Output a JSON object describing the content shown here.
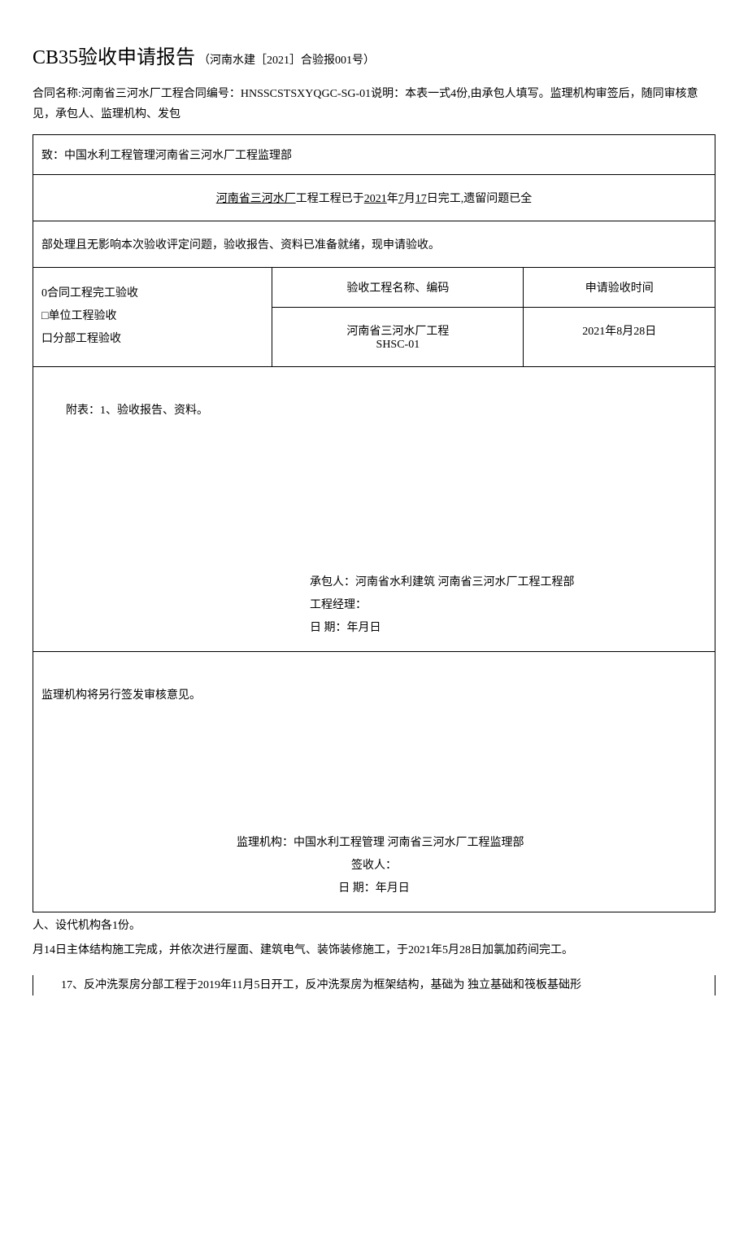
{
  "header": {
    "title": "CB35验收申请报告",
    "title_sub": "（河南水建［2021］合验报001号）",
    "desc": "合同名称:河南省三河水厂工程合同编号：HNSSCSTSXYQGC-SG-01说明：本表一式4份,由承包人填写。监理机构审签后，随同审核意见，承包人、监理机构、发包"
  },
  "form": {
    "to": "致：中国水利工程管理河南省三河水厂工程监理部",
    "completion_prefix": "河南省三河水厂",
    "completion_mid1": "工程工程已于",
    "completion_year": "2021",
    "completion_y": "年",
    "completion_month": "7",
    "completion_m": "月",
    "completion_day": "17",
    "completion_suffix": "日完工,遗留问题已全",
    "note": "部处理且无影响本次验收评定问题，验收报告、资料已准备就绪，现申请验收。",
    "checkbox1": "0合同工程完工验收",
    "checkbox2": "□单位工程验收",
    "checkbox3": "口分部工程验收",
    "col_name_header": "验收工程名称、编码",
    "col_time_header": "申请验收时间",
    "project_name_line1": "河南省三河水厂工程",
    "project_name_line2": "SHSC-01",
    "apply_date": "2021年8月28日",
    "attachment": "附表：1、验收报告、资料。",
    "contractor_label": "承包人：河南省水利建筑 河南省三河水厂工程工程部",
    "pm_label": "工程经理：",
    "date_label": "日 期：年月日",
    "supervise_note": "监理机构将另行签发审核意见。",
    "supervise_org": "监理机构：中国水利工程管理 河南省三河水厂工程监理部",
    "signee": "签收人：",
    "sup_date": "日 期：年月日"
  },
  "footer": {
    "line1": "人、设代机构各1份。",
    "line2": "月14日主体结构施工完成，并依次进行屋面、建筑电气、装饰装修施工，于2021年5月28日加氯加药间完工。",
    "para": "17、反冲洗泵房分部工程于2019年11月5日开工，反冲洗泵房为框架结构，基础为 独立基础和筏板基础形"
  }
}
